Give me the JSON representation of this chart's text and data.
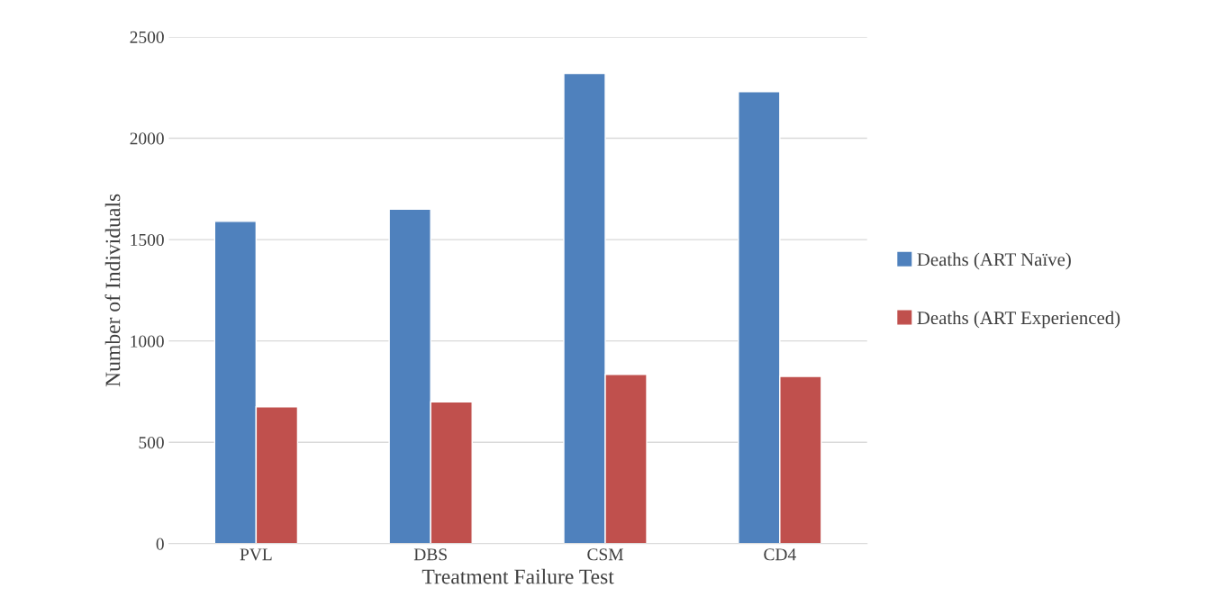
{
  "chart_data": {
    "type": "bar",
    "xlabel": "Treatment Failure Test",
    "ylabel": "Number of Individuals",
    "categories": [
      "PVL",
      "DBS",
      "CSM",
      "CD4"
    ],
    "series": [
      {
        "name": "Deaths (ART Naïve)",
        "color": "#4f81bd",
        "values": [
          1590,
          1650,
          2320,
          2230
        ]
      },
      {
        "name": "Deaths (ART Experienced)",
        "color": "#c0504d",
        "values": [
          675,
          700,
          835,
          825
        ]
      }
    ],
    "ylim": [
      0,
      2500
    ],
    "yticks": [
      0,
      500,
      1000,
      1500,
      2000,
      2500
    ],
    "grid": "y",
    "legend": "right"
  }
}
